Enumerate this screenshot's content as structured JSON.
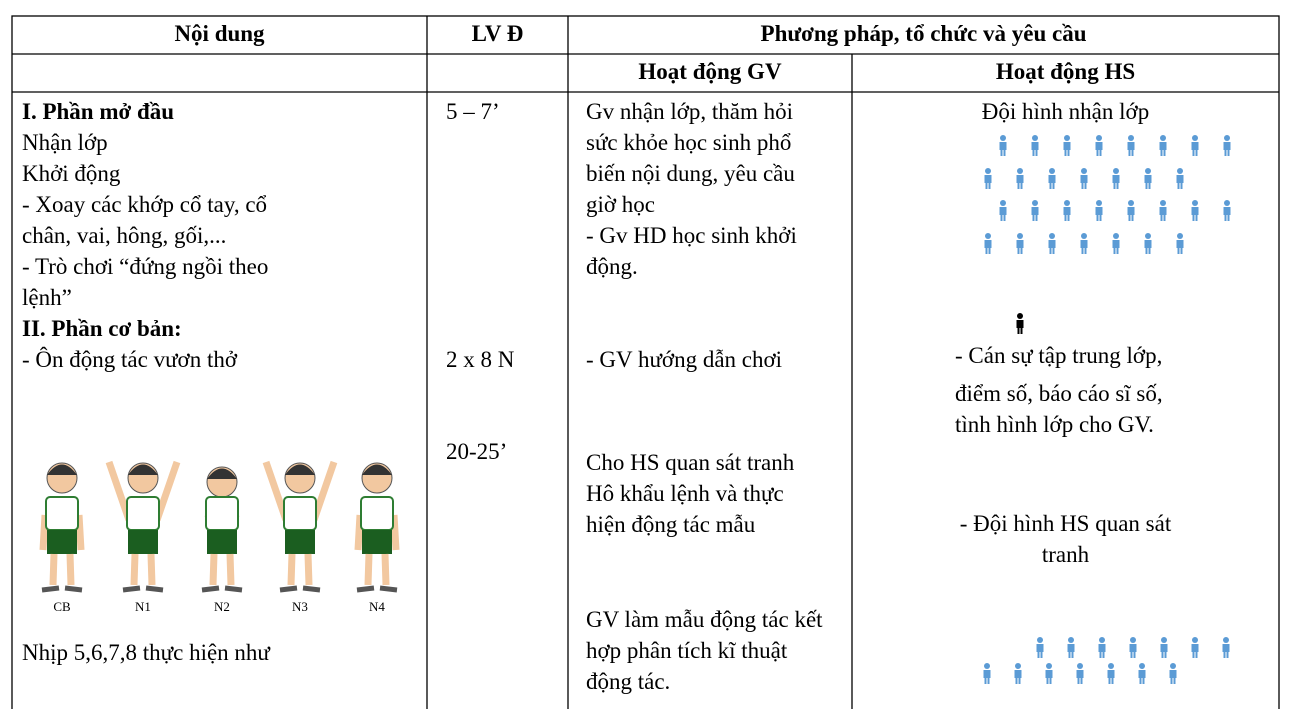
{
  "table": {
    "header": [
      "Nội dung",
      "LV Đ",
      "Phương pháp, tổ chức và yêu cầu"
    ],
    "subheader": [
      "Hoạt động GV",
      "Hoạt động HS"
    ],
    "content": [
      "I. Phần mở đầu",
      "Nhận lớp",
      "Khởi động",
      "- Xoay các khớp cổ tay, cổ",
      "chân, vai, hông, gối,...",
      "- Trò chơi “đứng ngồi theo",
      "lệnh”",
      "II. Phần cơ bản:",
      "- Ôn động tác vươn thở",
      "Nhịp 5,6,7,8 thực hiện như"
    ],
    "figure_labels": [
      "CB",
      "N1",
      "N2",
      "N3",
      "N4"
    ],
    "time": [
      "5 – 7’",
      "2 x 8 N",
      "20-25’"
    ],
    "gv": [
      "Gv nhận lớp, thăm hỏi",
      "sức khỏe học sinh phổ",
      "biến nội dung, yêu cầu",
      "giờ học",
      "- Gv HD học sinh khởi",
      "động.",
      "- GV hướng dẫn chơi",
      "Cho HS quan sát tranh",
      "Hô khẩu lệnh và thực",
      "hiện động tác mẫu",
      "GV làm mẫu động tác kết",
      "hợp phân tích kĩ thuật",
      "động tác."
    ],
    "hs": [
      "Đội hình nhận lớp",
      "- Cán sự tập trung lớp,",
      "điểm số, báo cáo sĩ số,",
      "tình hình lớp cho GV.",
      "- Đội hình HS quan sát",
      "tranh"
    ]
  }
}
